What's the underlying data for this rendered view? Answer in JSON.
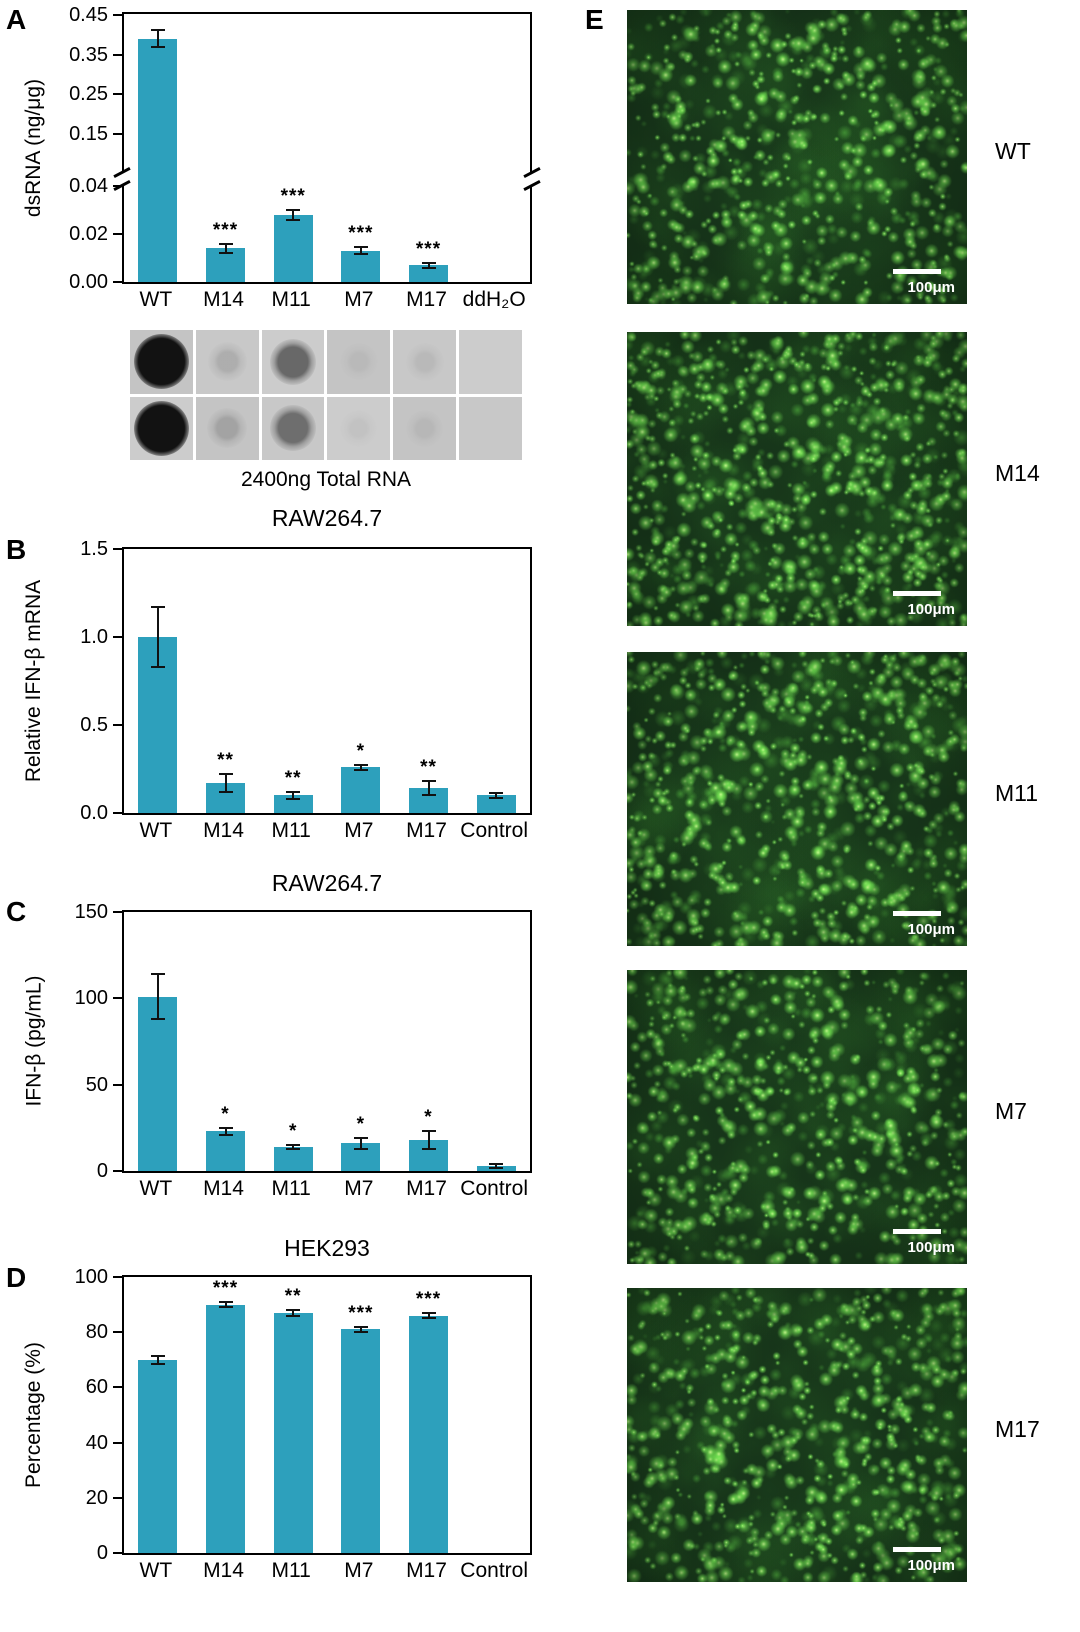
{
  "figure": {
    "panel_labels": {
      "A": "A",
      "B": "B",
      "C": "C",
      "D": "D",
      "E": "E"
    }
  },
  "colors": {
    "bar": "#2da0bc",
    "background": "#ffffff"
  },
  "chart_data": [
    {
      "id": "A",
      "type": "bar",
      "title": "",
      "ylabel": "dsRNA (ng/μg)",
      "categories": [
        "WT",
        "M14",
        "M11",
        "M7",
        "M17",
        "ddH₂O"
      ],
      "values": [
        0.39,
        0.014,
        0.028,
        0.013,
        0.007,
        0
      ],
      "errors": [
        0.022,
        0.002,
        0.002,
        0.0015,
        0.001,
        0
      ],
      "significance": [
        "",
        "***",
        "***",
        "***",
        "***",
        ""
      ],
      "tick_decimals": 2,
      "axis_break": true,
      "grid": false,
      "segments": [
        {
          "min": 0,
          "max": 0.04,
          "ticks": [
            0,
            0.02,
            0.04
          ],
          "frac": 0.36,
          "gap_after": 0.05
        },
        {
          "min": 0.05,
          "max": 0.45,
          "ticks": [
            0.15,
            0.25,
            0.35,
            0.45
          ],
          "frac": 0.59
        }
      ]
    },
    {
      "id": "B",
      "type": "bar",
      "title": "RAW264.7",
      "ylabel": "Relative IFN-β mRNA",
      "categories": [
        "WT",
        "M14",
        "M11",
        "M7",
        "M17",
        "Control"
      ],
      "values": [
        1.0,
        0.17,
        0.1,
        0.26,
        0.14,
        0.1
      ],
      "errors": [
        0.17,
        0.05,
        0.02,
        0.015,
        0.04,
        0.015
      ],
      "significance": [
        "",
        "**",
        "**",
        "*",
        "**",
        ""
      ],
      "tick_decimals": 1,
      "axis_break": false,
      "grid": false,
      "segments": [
        {
          "min": 0,
          "max": 1.5,
          "ticks": [
            0,
            0.5,
            1.0,
            1.5
          ],
          "frac": 1
        }
      ]
    },
    {
      "id": "C",
      "type": "bar",
      "title": "RAW264.7",
      "ylabel": "IFN-β (pg/mL)",
      "categories": [
        "WT",
        "M14",
        "M11",
        "M7",
        "M17",
        "Control"
      ],
      "values": [
        101,
        23,
        14,
        16,
        18,
        3
      ],
      "errors": [
        13,
        2,
        1,
        3,
        5,
        1
      ],
      "significance": [
        "",
        "*",
        "*",
        "*",
        "*",
        ""
      ],
      "tick_decimals": 0,
      "axis_break": false,
      "grid": false,
      "segments": [
        {
          "min": 0,
          "max": 150,
          "ticks": [
            0,
            50,
            100,
            150
          ],
          "frac": 1
        }
      ]
    },
    {
      "id": "D",
      "type": "bar",
      "title": "HEK293",
      "ylabel": "Percentage (%)",
      "categories": [
        "WT",
        "M14",
        "M11",
        "M7",
        "M17",
        "Control"
      ],
      "values": [
        70,
        90,
        87,
        81,
        86,
        0
      ],
      "errors": [
        1.5,
        1,
        1,
        0.8,
        0.8,
        0
      ],
      "significance": [
        "",
        "***",
        "**",
        "***",
        "***",
        ""
      ],
      "tick_decimals": 0,
      "axis_break": false,
      "grid": false,
      "segments": [
        {
          "min": 0,
          "max": 100,
          "ticks": [
            0,
            20,
            40,
            60,
            80,
            100
          ],
          "frac": 1
        }
      ]
    }
  ],
  "blot": {
    "caption": "2400ng Total RNA",
    "columns": [
      "WT",
      "M14",
      "M11",
      "M7",
      "M17",
      "ddH₂O"
    ],
    "rows": [
      [
        0.97,
        0.14,
        0.52,
        0.06,
        0.08,
        0.02
      ],
      [
        0.97,
        0.18,
        0.48,
        0.05,
        0.07,
        0.02
      ]
    ]
  },
  "micrographs": {
    "scale_label": "100μm",
    "items": [
      {
        "label": "WT",
        "seed": 11,
        "density": 1.0
      },
      {
        "label": "M14",
        "seed": 22,
        "density": 1.3
      },
      {
        "label": "M11",
        "seed": 33,
        "density": 1.15
      },
      {
        "label": "M7",
        "seed": 44,
        "density": 1.0
      },
      {
        "label": "M17",
        "seed": 55,
        "density": 1.05
      }
    ]
  }
}
